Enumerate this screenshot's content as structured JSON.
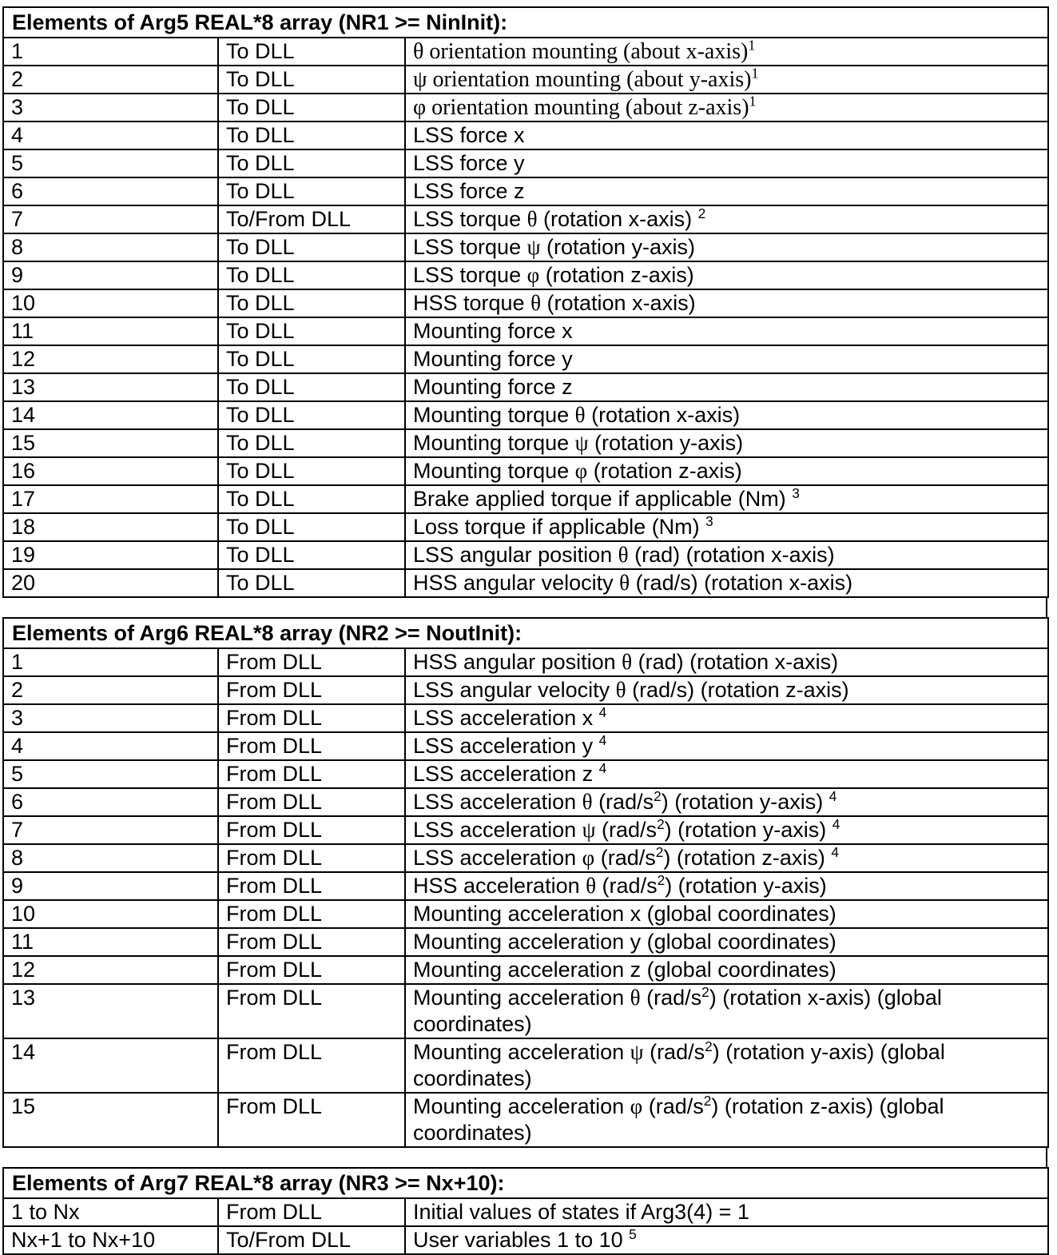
{
  "page": {
    "background": "#ffffff",
    "border_color": "#000000",
    "text_color": "#000000"
  },
  "tables": [
    {
      "title": "Elements of Arg5 REAL*8 array (NR1 >= NinInit):",
      "rows": [
        {
          "index": "1",
          "direction": "To DLL",
          "description": "θ orientation mounting (about x-axis)¹",
          "serif": true
        },
        {
          "index": "2",
          "direction": "To DLL",
          "description": "ψ orientation mounting (about y-axis)¹",
          "serif": true
        },
        {
          "index": "3",
          "direction": "To DLL",
          "description": "φ orientation mounting (about z-axis)¹",
          "serif": true
        },
        {
          "index": "4",
          "direction": "To DLL",
          "description": "LSS force x"
        },
        {
          "index": "5",
          "direction": "To DLL",
          "description": "LSS force y"
        },
        {
          "index": "6",
          "direction": "To DLL",
          "description": "LSS force z"
        },
        {
          "index": "7",
          "direction": "To/From DLL",
          "description": "LSS torque θ (rotation x-axis) ²"
        },
        {
          "index": "8",
          "direction": "To DLL",
          "description": "LSS torque ψ (rotation y-axis)"
        },
        {
          "index": "9",
          "direction": "To DLL",
          "description": "LSS torque φ (rotation z-axis)"
        },
        {
          "index": "10",
          "direction": "To DLL",
          "description": "HSS torque θ (rotation x-axis)"
        },
        {
          "index": "11",
          "direction": "To DLL",
          "description": "Mounting force x"
        },
        {
          "index": "12",
          "direction": "To DLL",
          "description": "Mounting force y"
        },
        {
          "index": "13",
          "direction": "To DLL",
          "description": "Mounting force z"
        },
        {
          "index": "14",
          "direction": "To DLL",
          "description": "Mounting torque θ (rotation x-axis)"
        },
        {
          "index": "15",
          "direction": "To DLL",
          "description": "Mounting torque ψ (rotation y-axis)"
        },
        {
          "index": "16",
          "direction": "To DLL",
          "description": "Mounting torque φ (rotation z-axis)"
        },
        {
          "index": "17",
          "direction": "To DLL",
          "description": "Brake applied torque if applicable (Nm) ³"
        },
        {
          "index": "18",
          "direction": "To DLL",
          "description": "Loss torque if applicable (Nm) ³"
        },
        {
          "index": "19",
          "direction": "To DLL",
          "description": "LSS angular position θ (rad) (rotation x-axis)"
        },
        {
          "index": "20",
          "direction": "To DLL",
          "description": "HSS angular velocity θ (rad/s) (rotation x-axis)"
        }
      ]
    },
    {
      "title": "Elements of Arg6 REAL*8 array (NR2 >= NoutInit):",
      "rows": [
        {
          "index": "1",
          "direction": "From DLL",
          "description": "HSS angular position θ (rad) (rotation x-axis)"
        },
        {
          "index": "2",
          "direction": "From DLL",
          "description": "LSS angular velocity θ (rad/s) (rotation z-axis)"
        },
        {
          "index": "3",
          "direction": "From DLL",
          "description": "LSS acceleration x ⁴"
        },
        {
          "index": "4",
          "direction": "From DLL",
          "description": "LSS acceleration y ⁴"
        },
        {
          "index": "5",
          "direction": "From DLL",
          "description": "LSS acceleration z ⁴"
        },
        {
          "index": "6",
          "direction": "From DLL",
          "description": "LSS acceleration θ (rad/s²) (rotation y-axis) ⁴"
        },
        {
          "index": "7",
          "direction": "From DLL",
          "description": "LSS acceleration ψ (rad/s²) (rotation y-axis) ⁴"
        },
        {
          "index": "8",
          "direction": "From DLL",
          "description": "LSS acceleration φ (rad/s²) (rotation z-axis) ⁴"
        },
        {
          "index": "9",
          "direction": "From DLL",
          "description": "HSS acceleration θ (rad/s²) (rotation y-axis)"
        },
        {
          "index": "10",
          "direction": "From DLL",
          "description": "Mounting acceleration x (global coordinates)"
        },
        {
          "index": "11",
          "direction": "From DLL",
          "description": "Mounting acceleration y (global coordinates)"
        },
        {
          "index": "12",
          "direction": "From DLL",
          "description": "Mounting acceleration z (global coordinates)"
        },
        {
          "index": "13",
          "direction": "From DLL",
          "description": "Mounting acceleration θ (rad/s²) (rotation x-axis) (global\ncoordinates)"
        },
        {
          "index": "14",
          "direction": "From DLL",
          "description": "Mounting acceleration ψ (rad/s²) (rotation y-axis) (global\ncoordinates)"
        },
        {
          "index": "15",
          "direction": "From DLL",
          "description": "Mounting acceleration φ (rad/s²) (rotation z-axis) (global\ncoordinates)"
        }
      ]
    },
    {
      "title": "Elements of Arg7 REAL*8 array (NR3 >= Nx+10):",
      "rows": [
        {
          "index": "1 to Nx",
          "direction": "From DLL",
          "description": "Initial values of states if Arg3(4) = 1"
        },
        {
          "index": "Nx+1 to Nx+10",
          "direction": "To/From DLL",
          "description": "User variables 1 to 10 ⁵"
        }
      ]
    }
  ]
}
